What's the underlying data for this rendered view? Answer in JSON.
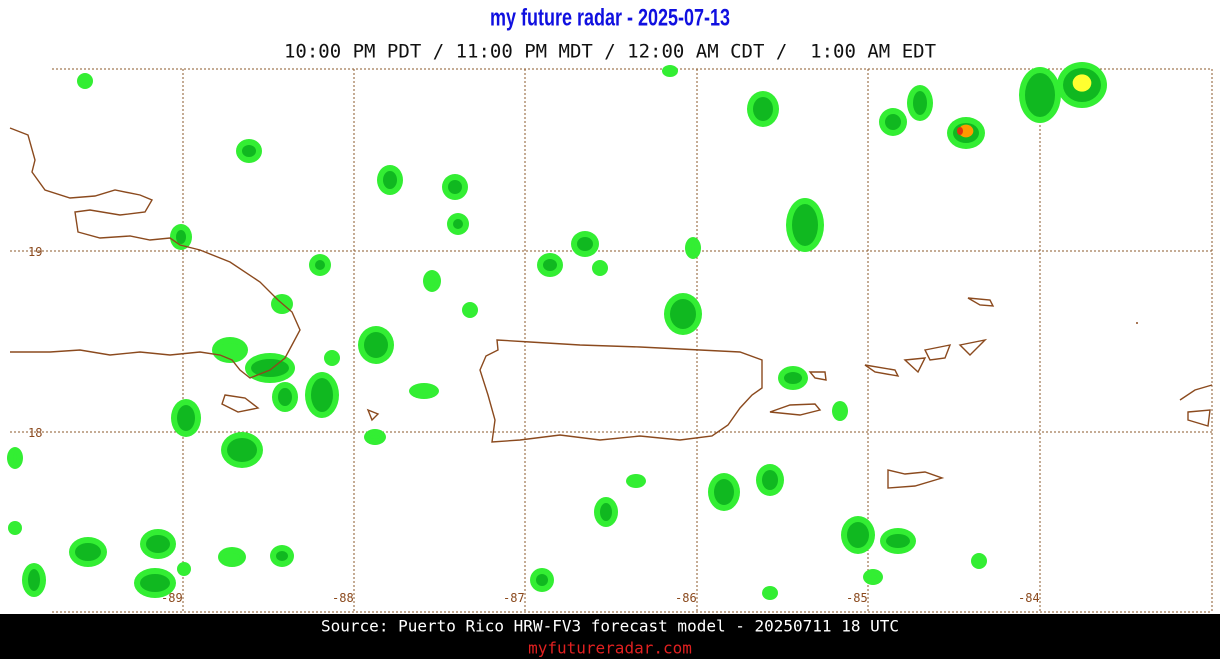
{
  "header": {
    "title": "my future radar - 2025-07-13",
    "subtitle": "10:00 PM PDT / 11:00 PM MDT / 12:00 AM CDT /  1:00 AM EDT"
  },
  "map": {
    "lat_labels": [
      "19",
      "18"
    ],
    "lon_labels": [
      "-89",
      "-88",
      "-87",
      "-86",
      "-85",
      "-84"
    ]
  },
  "footer": {
    "source": "Source: Puerto Rico HRW-FV3 forecast model - 20250711 18 UTC",
    "link": "myfutureradar.com"
  }
}
